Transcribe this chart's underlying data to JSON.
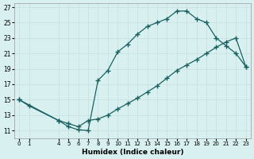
{
  "xlabel": "Humidex (Indice chaleur)",
  "bg_color": "#d8f0f0",
  "grid_color": "#c8dede",
  "line_color": "#1a6060",
  "xlim": [
    -0.5,
    23.5
  ],
  "ylim": [
    10.0,
    27.5
  ],
  "xticks": [
    0,
    1,
    4,
    5,
    6,
    7,
    8,
    9,
    10,
    11,
    12,
    13,
    14,
    15,
    16,
    17,
    18,
    19,
    20,
    21,
    22,
    23
  ],
  "yticks": [
    11,
    13,
    15,
    17,
    19,
    21,
    23,
    25,
    27
  ],
  "upper_x": [
    0,
    1,
    4,
    5,
    6,
    7,
    8,
    9,
    10,
    11,
    12,
    13,
    14,
    15,
    16,
    17,
    18,
    19,
    20,
    21,
    22,
    23
  ],
  "upper_y": [
    15.0,
    14.2,
    12.3,
    11.5,
    11.1,
    11.0,
    17.5,
    18.8,
    21.2,
    22.2,
    23.5,
    24.5,
    25.0,
    25.5,
    26.5,
    26.5,
    25.5,
    25.0,
    23.0,
    22.0,
    21.0,
    19.3
  ],
  "lower_x": [
    0,
    4,
    5,
    6,
    7,
    8,
    9,
    10,
    11,
    12,
    13,
    14,
    15,
    16,
    17,
    18,
    19,
    20,
    21,
    22,
    23
  ],
  "lower_y": [
    15.0,
    12.3,
    11.9,
    11.5,
    12.3,
    12.5,
    13.0,
    13.8,
    14.5,
    15.2,
    16.0,
    16.8,
    17.8,
    18.8,
    19.5,
    20.2,
    21.0,
    21.8,
    22.5,
    23.0,
    19.3
  ]
}
